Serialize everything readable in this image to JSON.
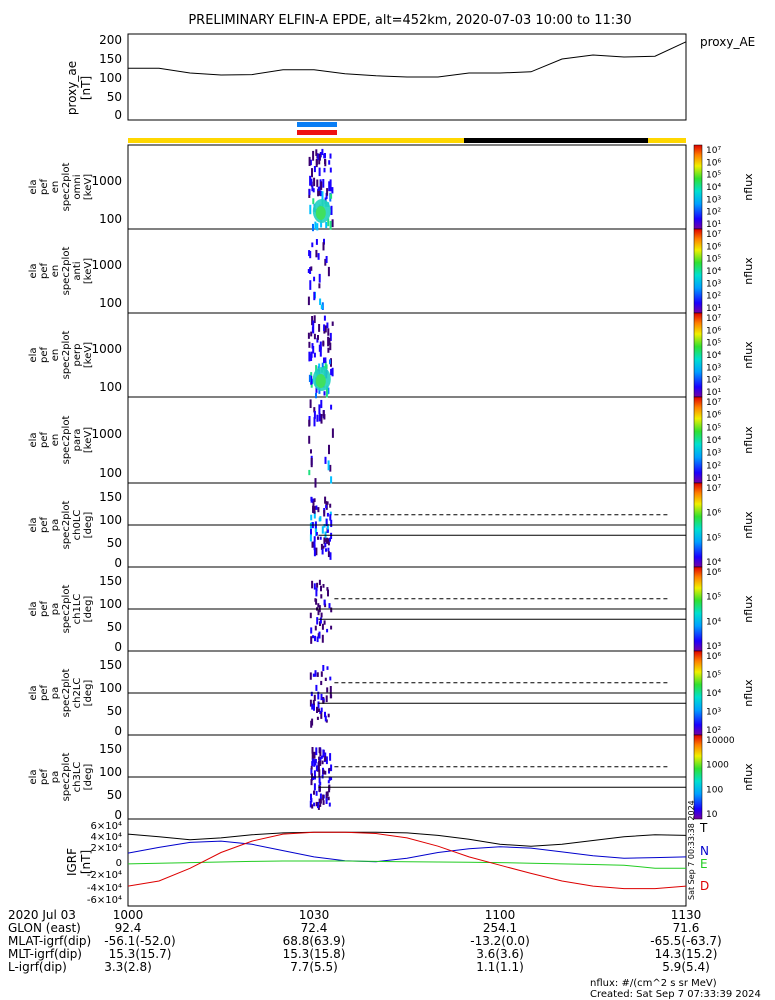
{
  "title": "PRELIMINARY ELFIN-A EPDE, alt=452km, 2020-07-03 10:00 to 11:30",
  "proxy_panel": {
    "ylabel": [
      "proxy_ae",
      "[nT]"
    ],
    "yticks": [
      "200",
      "150",
      "100",
      "50",
      "0"
    ],
    "legend": "proxy_AE"
  },
  "energy_panels": [
    {
      "ylabel": [
        "ela",
        "pef",
        "en",
        "spec2plot",
        "omni",
        "[keV]"
      ],
      "cbar_label": "nflux",
      "cbar_ticks": [
        "10⁷",
        "10⁶",
        "10⁵",
        "10⁴",
        "10³",
        "10²",
        "10¹"
      ]
    },
    {
      "ylabel": [
        "ela",
        "pef",
        "en",
        "spec2plot",
        "anti",
        "[keV]"
      ],
      "cbar_label": "nflux",
      "cbar_ticks": [
        "10⁷",
        "10⁶",
        "10⁵",
        "10⁴",
        "10³",
        "10²",
        "10¹"
      ]
    },
    {
      "ylabel": [
        "ela",
        "pef",
        "en",
        "spec2plot",
        "perp",
        "[keV]"
      ],
      "cbar_label": "nflux",
      "cbar_ticks": [
        "10⁷",
        "10⁶",
        "10⁵",
        "10⁴",
        "10³",
        "10²",
        "10¹"
      ]
    },
    {
      "ylabel": [
        "ela",
        "pef",
        "en",
        "spec2plot",
        "para",
        "[keV]"
      ],
      "cbar_label": "nflux",
      "cbar_ticks": [
        "10⁷",
        "10⁶",
        "10⁵",
        "10⁴",
        "10³",
        "10²",
        "10¹"
      ]
    }
  ],
  "energy_yticks": [
    "1000",
    "100"
  ],
  "pa_panels": [
    {
      "ylabel": [
        "ela",
        "pef",
        "pa",
        "spec2plot",
        "ch0LC",
        "[deg]"
      ],
      "cbar_label": "nflux",
      "cbar_ticks": [
        "10⁷",
        "10⁶",
        "10⁵",
        "10⁴"
      ]
    },
    {
      "ylabel": [
        "ela",
        "pef",
        "pa",
        "spec2plot",
        "ch1LC",
        "[deg]"
      ],
      "cbar_label": "nflux",
      "cbar_ticks": [
        "10⁶",
        "10⁵",
        "10⁴",
        "10³"
      ]
    },
    {
      "ylabel": [
        "ela",
        "pef",
        "pa",
        "spec2plot",
        "ch2LC",
        "[deg]"
      ],
      "cbar_label": "nflux",
      "cbar_ticks": [
        "10⁶",
        "10⁵",
        "10⁴",
        "10³",
        "10²"
      ]
    },
    {
      "ylabel": [
        "ela",
        "pef",
        "pa",
        "spec2plot",
        "ch3LC",
        "[deg]"
      ],
      "cbar_label": "nflux",
      "cbar_ticks": [
        "10000",
        "1000",
        "100",
        "10"
      ]
    }
  ],
  "pa_yticks": [
    "150",
    "100",
    "50",
    "0"
  ],
  "igrf_panel": {
    "ylabel": [
      "IGRF",
      "[nT]"
    ],
    "yticks": [
      "6×10⁴",
      "4×10⁴",
      "2×10⁴",
      "0",
      "-2×10⁴",
      "-4×10⁴",
      "-6×10⁴"
    ],
    "legend": [
      "T",
      "N",
      "E",
      "D"
    ],
    "side_stamp": "Sat Sep  7 00:33:38 2024"
  },
  "footer": {
    "rows": [
      [
        "2020 Jul 03",
        "1000",
        "1030",
        "1100",
        "1130"
      ],
      [
        "GLON (east)",
        "92.4",
        "72.4",
        "254.1",
        "71.6"
      ],
      [
        "MLAT-igrf(dip)",
        "-56.1(-52.0)",
        "68.8(63.9)",
        "-13.2(0.0)",
        "-65.5(-63.7)"
      ],
      [
        "MLT-igrf(dip)",
        "15.3(15.7)",
        "15.3(15.8)",
        "3.6(3.6)",
        "14.3(15.2)"
      ],
      [
        "L-igrf(dip)",
        "3.3(2.8)",
        "7.7(5.5)",
        "1.1(1.1)",
        "5.9(5.4)"
      ]
    ],
    "units_note": "nflux: #/(cm^2 s sr MeV)",
    "created": "Created: Sat Sep  7 07:33:39 2024"
  },
  "colors": {
    "sunlight_bar": "#ffd700",
    "eclipse_bar": "#000000",
    "science_blue": "#0a7ef5",
    "science_red": "#ee1111",
    "T": "#000000",
    "N": "#0000cc",
    "E": "#22cc22",
    "D": "#dd0000"
  },
  "chart_data": {
    "type": "line",
    "x_range": [
      "10:00",
      "11:30"
    ],
    "proxy_ae": {
      "ylim": [
        0,
        200
      ],
      "x": [
        "10:00",
        "10:05",
        "10:10",
        "10:15",
        "10:20",
        "10:25",
        "10:30",
        "10:35",
        "10:40",
        "10:45",
        "10:50",
        "10:55",
        "11:00",
        "11:05",
        "11:10",
        "11:15",
        "11:20",
        "11:25",
        "11:30"
      ],
      "values": [
        122,
        122,
        110,
        105,
        106,
        118,
        118,
        108,
        103,
        100,
        100,
        110,
        110,
        113,
        145,
        155,
        150,
        152,
        188
      ]
    },
    "igrf": {
      "ylim": [
        -60000,
        60000
      ],
      "x": [
        "10:00",
        "10:05",
        "10:10",
        "10:15",
        "10:20",
        "10:25",
        "10:30",
        "10:35",
        "10:40",
        "10:45",
        "10:50",
        "10:55",
        "11:00",
        "11:05",
        "11:10",
        "11:15",
        "11:20",
        "11:25",
        "11:30"
      ],
      "series": [
        {
          "name": "T",
          "values": [
            44000,
            40000,
            35000,
            38000,
            43000,
            46000,
            47000,
            47000,
            47000,
            46000,
            42000,
            36000,
            28000,
            25000,
            28000,
            34000,
            40000,
            43000,
            42000
          ]
        },
        {
          "name": "N",
          "values": [
            14000,
            23000,
            31000,
            33000,
            28000,
            18000,
            8000,
            2000,
            500,
            6000,
            15000,
            21000,
            24000,
            22000,
            16000,
            10000,
            6000,
            7000,
            8000
          ]
        },
        {
          "name": "E",
          "values": [
            -3000,
            -2000,
            -1000,
            0,
            1000,
            1500,
            1500,
            1500,
            1000,
            500,
            0,
            -500,
            -1000,
            -2000,
            -3000,
            -4000,
            -5000,
            -10000,
            -10000
          ]
        },
        {
          "name": "D",
          "values": [
            -38000,
            -30000,
            -10000,
            15000,
            33000,
            44000,
            47000,
            47000,
            45000,
            38000,
            25000,
            8000,
            -5000,
            -18000,
            -30000,
            -38000,
            -42000,
            -42000,
            -38000
          ]
        }
      ]
    },
    "energy_ylim_keV": [
      60,
      6000
    ],
    "pa_ylim_deg": [
      0,
      180
    ],
    "pa_reference_lines_deg": [
      90,
      68,
      112
    ],
    "burst_interval": [
      "10:29",
      "10:32"
    ],
    "eclipse_interval": [
      "11:06",
      "11:23"
    ]
  }
}
